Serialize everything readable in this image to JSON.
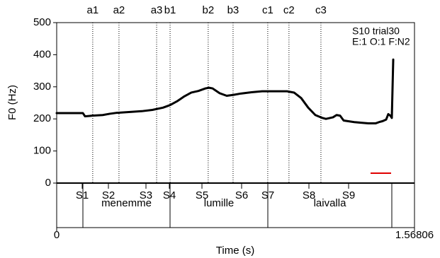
{
  "chart_data": {
    "type": "line",
    "y_label": "F0 (Hz)",
    "x_label": "Time (s)",
    "annotations": [
      "S10 trial30",
      "E:1 O:1 F:N2"
    ],
    "xlim": [
      0,
      1.56806
    ],
    "xticks": [
      0,
      1.56806
    ],
    "ylim": [
      0,
      500
    ],
    "yticks": [
      0,
      100,
      200,
      300,
      400,
      500
    ],
    "color": "#000000",
    "x": [
      0,
      0.1149,
      0.1242,
      0.1553,
      0.2018,
      0.2329,
      0.2639,
      0.3105,
      0.3726,
      0.4192,
      0.4658,
      0.4968,
      0.5279,
      0.5589,
      0.59,
      0.621,
      0.6521,
      0.6676,
      0.6831,
      0.7142,
      0.7452,
      0.7763,
      0.8073,
      0.8539,
      0.9005,
      0.9626,
      1.0092,
      1.0402,
      1.0713,
      1.1023,
      1.1334,
      1.1644,
      1.1799,
      1.211,
      1.2265,
      1.242,
      1.2576,
      1.3041,
      1.3662,
      1.3973,
      1.4128,
      1.4283,
      1.4439,
      1.4532,
      1.4625,
      1.4687,
      1.4749
    ],
    "values": [
      218,
      218,
      208,
      210,
      212,
      216,
      219,
      221,
      224,
      228,
      235,
      243,
      255,
      270,
      282,
      287,
      295,
      297,
      295,
      280,
      272,
      275,
      279,
      283,
      286,
      286,
      286,
      282,
      265,
      235,
      212,
      203,
      200,
      205,
      212,
      210,
      195,
      190,
      186,
      186,
      190,
      193,
      198,
      215,
      210,
      203,
      385
    ],
    "points": [
      {
        "label": "a1",
        "time": 0.158
      },
      {
        "label": "a2",
        "time": 0.273
      },
      {
        "label": "a3",
        "time": 0.438
      },
      {
        "label": "b1",
        "time": 0.497
      },
      {
        "label": "b2",
        "time": 0.664
      },
      {
        "label": "b3",
        "time": 0.773
      },
      {
        "label": "c1",
        "time": 0.925
      },
      {
        "label": "c2",
        "time": 1.018
      },
      {
        "label": "c3",
        "time": 1.158
      }
    ],
    "segments": [
      {
        "label": "S1",
        "time": 0.1118
      },
      {
        "label": "S2",
        "time": 0.2267
      },
      {
        "label": "S3",
        "time": 0.3912
      },
      {
        "label": "S4",
        "time": 0.4937
      },
      {
        "label": "S5",
        "time": 0.6366
      },
      {
        "label": "S6",
        "time": 0.8104
      },
      {
        "label": "S7",
        "time": 0.9253
      },
      {
        "label": "S8",
        "time": 1.1054
      },
      {
        "label": "S9",
        "time": 1.2793
      }
    ],
    "words": [
      {
        "label": "menemme",
        "start": 0.1149,
        "end": 0.4968
      },
      {
        "label": "lumille",
        "start": 0.4968,
        "end": 0.9253
      },
      {
        "label": "laivalla",
        "start": 0.9253,
        "end": 1.4687
      }
    ]
  }
}
